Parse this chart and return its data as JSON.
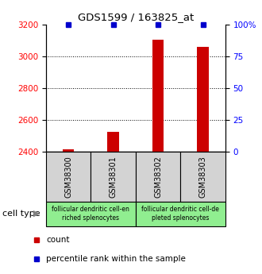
{
  "title": "GDS1599 / 163825_at",
  "samples": [
    "GSM38300",
    "GSM38301",
    "GSM38302",
    "GSM38303"
  ],
  "counts": [
    2415,
    2525,
    3105,
    3060
  ],
  "percentiles": [
    100,
    100,
    100,
    100
  ],
  "ylim_left": [
    2400,
    3200
  ],
  "ylim_right": [
    0,
    100
  ],
  "yticks_left": [
    2400,
    2600,
    2800,
    3000,
    3200
  ],
  "yticks_right": [
    0,
    25,
    50,
    75,
    100
  ],
  "ytick_labels_right": [
    "0",
    "25",
    "50",
    "75",
    "100%"
  ],
  "bar_color": "#cc0000",
  "percentile_color": "#0000cc",
  "groups": [
    {
      "label": "follicular dendritic cell-en\nriched splenocytes",
      "samples": [
        0,
        1
      ],
      "color": "#90ee90"
    },
    {
      "label": "follicular dendritic cell-de\npleted splenocytes",
      "samples": [
        2,
        3
      ],
      "color": "#90ee90"
    }
  ],
  "cell_type_label": "cell type",
  "legend_count_label": "count",
  "legend_percentile_label": "percentile rank within the sample",
  "sample_box_color": "#d3d3d3",
  "bar_width": 0.25
}
